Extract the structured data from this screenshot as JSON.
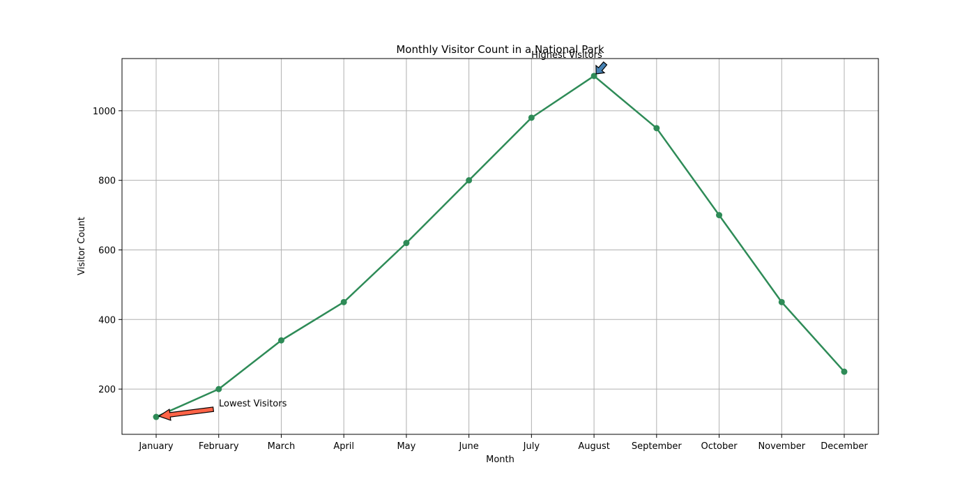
{
  "chart_data": {
    "type": "line",
    "title": "Monthly Visitor Count in a National Park",
    "xlabel": "Month",
    "ylabel": "Visitor Count",
    "categories": [
      "January",
      "February",
      "March",
      "April",
      "May",
      "June",
      "July",
      "August",
      "September",
      "October",
      "November",
      "December"
    ],
    "series": [
      {
        "values": [
          120,
          200,
          340,
          450,
          620,
          800,
          980,
          1100,
          950,
          700,
          450,
          250
        ],
        "color": "#2e8b57"
      }
    ],
    "ylim": [
      70,
      1150
    ],
    "yticks": [
      200,
      400,
      600,
      800,
      1000
    ],
    "grid": true,
    "annotations": [
      {
        "text": "Lowest Visitors",
        "category": "January",
        "value": 120,
        "arrow_color": "#ff6347"
      },
      {
        "text": "Highest Visitors",
        "category": "August",
        "value": 1100,
        "arrow_color": "#4682b4"
      }
    ]
  }
}
